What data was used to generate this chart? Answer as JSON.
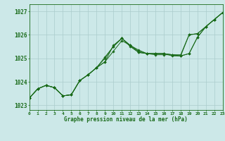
{
  "xlabel": "Graphe pression niveau de la mer (hPa)",
  "ylim": [
    1022.8,
    1027.3
  ],
  "xlim": [
    0,
    23
  ],
  "xticks": [
    0,
    1,
    2,
    3,
    4,
    5,
    6,
    7,
    8,
    9,
    10,
    11,
    12,
    13,
    14,
    15,
    16,
    17,
    18,
    19,
    20,
    21,
    22,
    23
  ],
  "yticks": [
    1023,
    1024,
    1025,
    1026,
    1027
  ],
  "bg_color": "#cce8e8",
  "grid_color": "#aacccc",
  "line_color": "#1a6b1a",
  "series": [
    [
      1023.3,
      1023.7,
      1023.85,
      1023.75,
      1023.4,
      1023.45,
      1024.05,
      1024.3,
      1024.6,
      1024.85,
      1025.55,
      1025.85,
      1025.55,
      1025.35,
      1025.2,
      1025.2,
      1025.2,
      1025.15,
      1025.1,
      1025.2,
      1025.9,
      1026.35,
      1026.65,
      1026.95
    ],
    [
      1023.3,
      1023.7,
      1023.85,
      1023.75,
      1023.4,
      1023.45,
      1024.05,
      1024.3,
      1024.6,
      1024.85,
      1025.3,
      1025.75,
      1025.55,
      1025.3,
      1025.2,
      1025.2,
      1025.2,
      1025.15,
      1025.1,
      1025.2,
      1025.9,
      1026.35,
      1026.65,
      1026.95
    ],
    [
      1023.3,
      1023.7,
      1023.85,
      1023.75,
      1023.4,
      1023.45,
      1024.05,
      1024.3,
      1024.6,
      1025.05,
      1025.5,
      1025.85,
      1025.5,
      1025.25,
      1025.2,
      1025.2,
      1025.2,
      1025.1,
      1025.1,
      1026.0,
      1026.05,
      1026.35,
      1026.65,
      1026.95
    ],
    [
      1023.3,
      1023.7,
      1023.85,
      1023.75,
      1023.4,
      1023.45,
      1024.05,
      1024.3,
      1024.6,
      1025.0,
      1025.5,
      1025.85,
      1025.55,
      1025.25,
      1025.2,
      1025.15,
      1025.15,
      1025.15,
      1025.15,
      1026.0,
      1026.05,
      1026.35,
      1026.65,
      1026.95
    ]
  ]
}
